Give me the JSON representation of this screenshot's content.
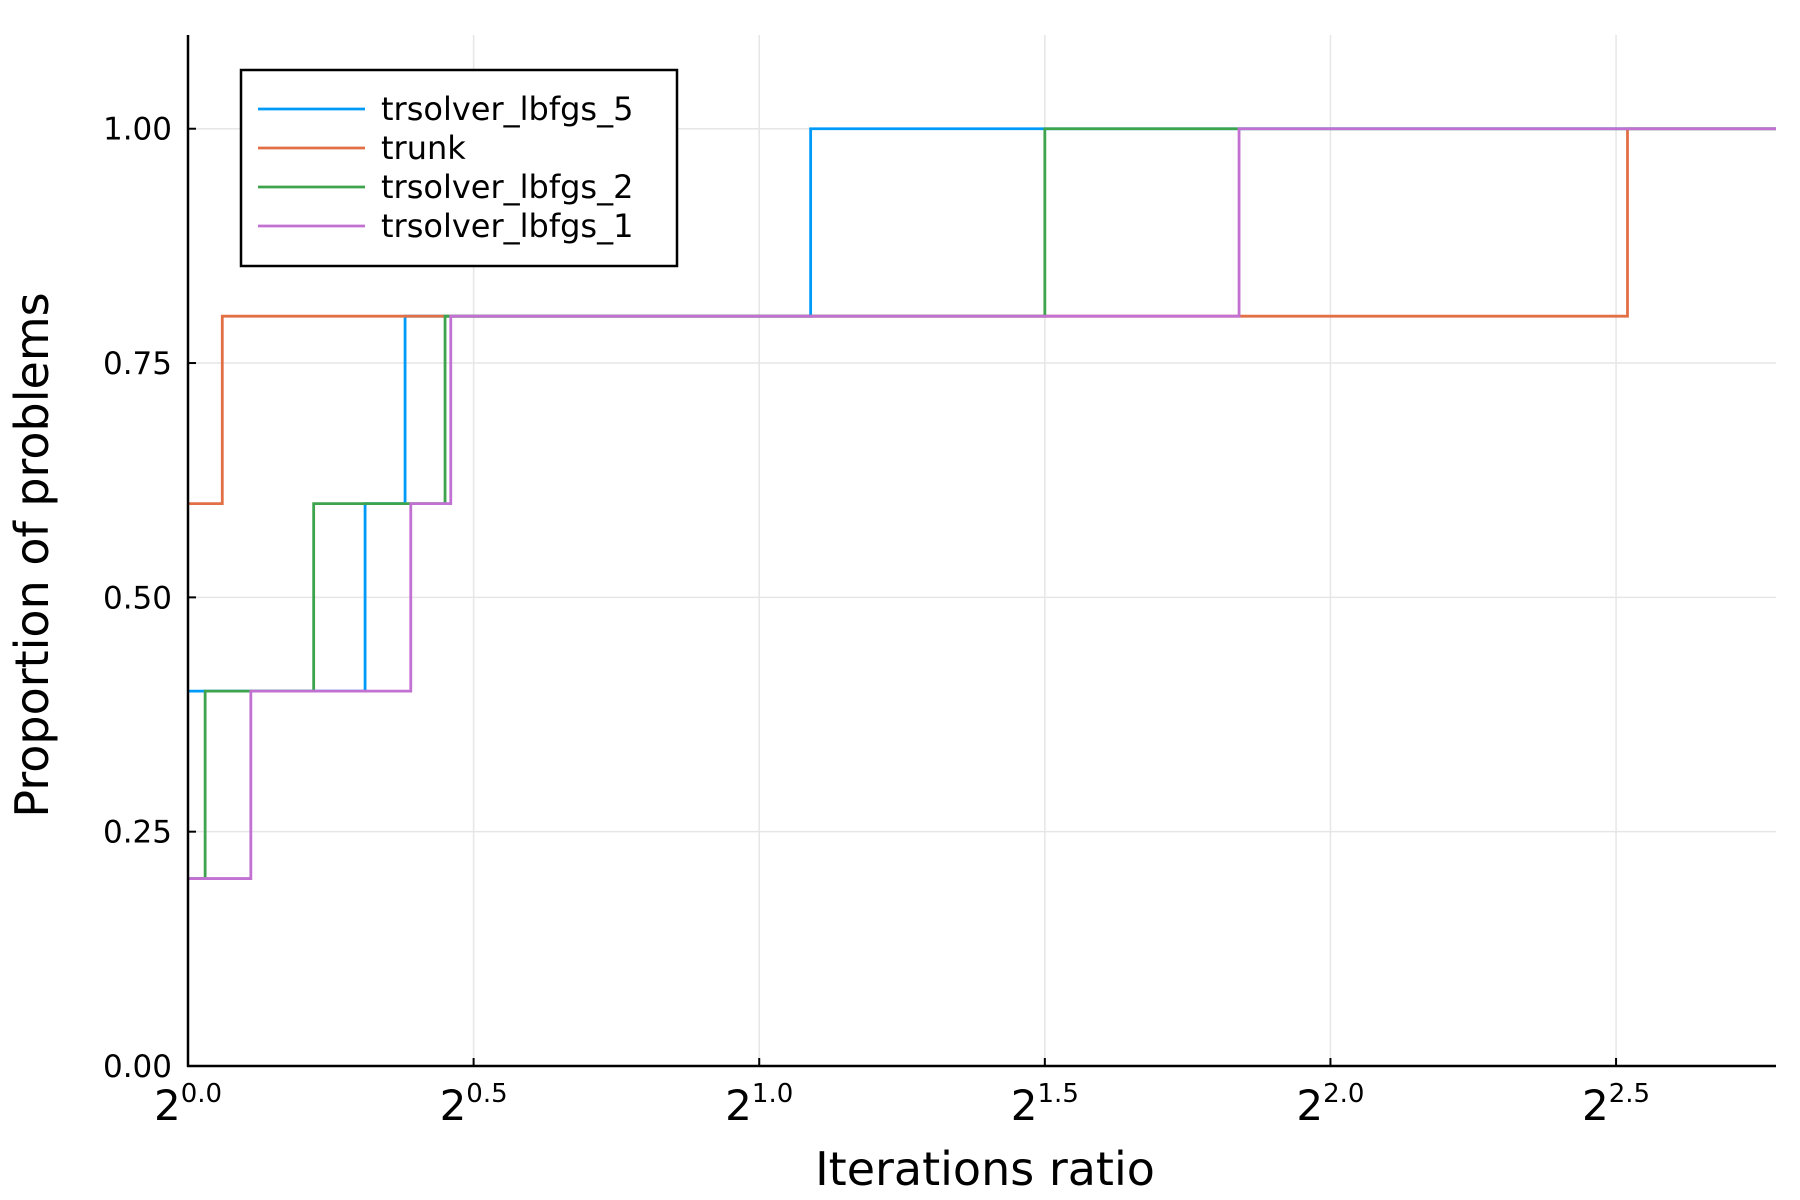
{
  "chart_data": {
    "type": "line",
    "step": "post",
    "xlabel": "Iterations ratio",
    "ylabel": "Proportion of problems",
    "x_scale": "log2",
    "x_exponent_range": [
      0,
      2.78
    ],
    "ylim": [
      0,
      1.1
    ],
    "x_tick_exponents": [
      "0.0",
      "0.5",
      "1.0",
      "1.5",
      "2.0",
      "2.5"
    ],
    "y_ticks": [
      "0.00",
      "0.25",
      "0.50",
      "0.75",
      "1.00"
    ],
    "grid": true,
    "legend_position": "top-left",
    "series": [
      {
        "name": "trsolver_lbfgs_5",
        "color": "#009af9",
        "points": [
          [
            0,
            0.4
          ],
          [
            0.31,
            0.6
          ],
          [
            0.38,
            0.8
          ],
          [
            1.09,
            1.0
          ],
          [
            2.78,
            1.0
          ]
        ]
      },
      {
        "name": "trunk",
        "color": "#e26f46",
        "points": [
          [
            0,
            0.6
          ],
          [
            0.06,
            0.8
          ],
          [
            2.52,
            1.0
          ],
          [
            2.78,
            1.0
          ]
        ]
      },
      {
        "name": "trsolver_lbfgs_2",
        "color": "#3da44d",
        "points": [
          [
            0,
            0.2
          ],
          [
            0.03,
            0.4
          ],
          [
            0.22,
            0.6
          ],
          [
            0.45,
            0.8
          ],
          [
            1.5,
            1.0
          ],
          [
            2.78,
            1.0
          ]
        ]
      },
      {
        "name": "trsolver_lbfgs_1",
        "color": "#c271d2",
        "points": [
          [
            0,
            0.2
          ],
          [
            0.11,
            0.4
          ],
          [
            0.39,
            0.6
          ],
          [
            0.46,
            0.8
          ],
          [
            1.84,
            1.0
          ],
          [
            2.78,
            1.0
          ]
        ]
      }
    ]
  }
}
